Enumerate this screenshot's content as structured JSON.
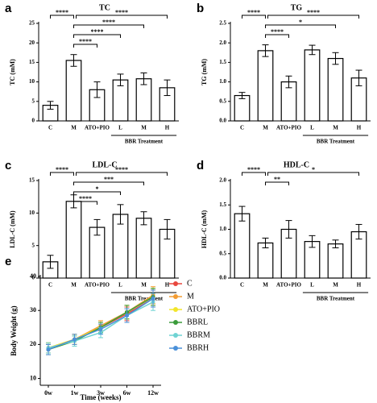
{
  "chart_data": [
    {
      "type": "bar",
      "panel_label": "a",
      "title": "TC",
      "y_label": "TC (mM)",
      "categories": [
        "C",
        "M",
        "ATO+PIO",
        "L",
        "M",
        "H"
      ],
      "group_label": "BBR Treatment",
      "values": [
        4,
        15.5,
        8,
        10.5,
        10.8,
        8.5
      ],
      "errors": [
        1,
        1.5,
        2,
        1.5,
        1.5,
        2
      ],
      "ylim": [
        0,
        25
      ],
      "yticks": [
        0,
        5,
        10,
        15,
        20,
        25
      ],
      "comparisons": [
        {
          "between": [
            0,
            1
          ],
          "label": "****"
        },
        {
          "between": [
            1,
            5
          ],
          "label": "****"
        },
        {
          "between": [
            1,
            4
          ],
          "label": "****"
        },
        {
          "between": [
            1,
            3
          ],
          "label": "****"
        },
        {
          "between": [
            1,
            2
          ],
          "label": "****"
        }
      ]
    },
    {
      "type": "bar",
      "panel_label": "b",
      "title": "TG",
      "y_label": "TG (mM)",
      "categories": [
        "C",
        "M",
        "ATO+PIO",
        "L",
        "M",
        "H"
      ],
      "group_label": "BBR Treatment",
      "values": [
        0.65,
        1.8,
        1.0,
        1.82,
        1.6,
        1.1
      ],
      "errors": [
        0.08,
        0.15,
        0.15,
        0.12,
        0.15,
        0.2
      ],
      "ylim": [
        0,
        2.5
      ],
      "yticks": [
        {
          "value": 0,
          "label": "0.0"
        },
        {
          "value": 0.5,
          "label": "0.5"
        },
        {
          "value": 1,
          "label": "1.0"
        },
        {
          "value": 1.5,
          "label": "1.5"
        },
        {
          "value": 2,
          "label": "2.0"
        },
        {
          "value": 2.5,
          "label": "2.5"
        }
      ],
      "comparisons": [
        {
          "between": [
            0,
            1
          ],
          "label": "****"
        },
        {
          "between": [
            1,
            5
          ],
          "label": "****"
        },
        {
          "between": [
            1,
            4
          ],
          "label": "*"
        },
        {
          "between": [
            1,
            2
          ],
          "label": "****"
        }
      ]
    },
    {
      "type": "bar",
      "panel_label": "c",
      "title": "LDL-C",
      "y_label": "LDL-C (mM)",
      "categories": [
        "C",
        "M",
        "ATO+PIO",
        "L",
        "M",
        "H"
      ],
      "group_label": "BBR Treatment",
      "values": [
        2.5,
        11.8,
        7.8,
        9.8,
        9.2,
        7.5
      ],
      "errors": [
        1,
        1,
        1.2,
        1.5,
        1,
        1.5
      ],
      "ylim": [
        0,
        15
      ],
      "yticks": [
        0,
        5,
        10,
        15
      ],
      "comparisons": [
        {
          "between": [
            0,
            1
          ],
          "label": "****"
        },
        {
          "between": [
            1,
            5
          ],
          "label": "****"
        },
        {
          "between": [
            1,
            4
          ],
          "label": "***"
        },
        {
          "between": [
            1,
            3
          ],
          "label": "*"
        },
        {
          "between": [
            1,
            2
          ],
          "label": "****"
        }
      ]
    },
    {
      "type": "bar",
      "panel_label": "d",
      "title": "HDL-C",
      "y_label": "HDL-C (mM)",
      "categories": [
        "C",
        "M",
        "ATO+PIO",
        "L",
        "M",
        "H"
      ],
      "group_label": "BBR Treatment",
      "values": [
        1.32,
        0.72,
        1.0,
        0.75,
        0.7,
        0.95
      ],
      "errors": [
        0.15,
        0.1,
        0.18,
        0.12,
        0.08,
        0.15
      ],
      "ylim": [
        0,
        2.0
      ],
      "yticks": [
        {
          "value": 0,
          "label": "0.0"
        },
        {
          "value": 0.5,
          "label": "0.5"
        },
        {
          "value": 1,
          "label": "1.0"
        },
        {
          "value": 1.5,
          "label": "1.5"
        },
        {
          "value": 2,
          "label": "2.0"
        }
      ],
      "comparisons": [
        {
          "between": [
            0,
            1
          ],
          "label": "****"
        },
        {
          "between": [
            1,
            5
          ],
          "label": "*"
        },
        {
          "between": [
            1,
            2
          ],
          "label": "**"
        }
      ]
    },
    {
      "type": "line",
      "panel_label": "e",
      "y_label": "Body Weight (g)",
      "x_label": "Time (weeks)",
      "categories": [
        "0w",
        "1w",
        "3w",
        "6w",
        "12w"
      ],
      "ylim": [
        8,
        40
      ],
      "yticks": [
        10,
        20,
        30,
        40
      ],
      "series": [
        {
          "name": "C",
          "color": "#e8473e",
          "values": [
            18.5,
            21.5,
            25,
            29,
            33.5
          ],
          "errors": [
            1.5,
            1.5,
            1.5,
            2,
            2.5
          ]
        },
        {
          "name": "M",
          "color": "#f39c32",
          "values": [
            19,
            21.5,
            25.5,
            29.5,
            34.5
          ],
          "errors": [
            1.5,
            1.5,
            1.5,
            2,
            2.5
          ]
        },
        {
          "name": "ATO+PIO",
          "color": "#f2e52a",
          "values": [
            19,
            21.5,
            25,
            29.5,
            34
          ],
          "errors": [
            1.5,
            1.5,
            1.5,
            2,
            2.5
          ]
        },
        {
          "name": "BBRL",
          "color": "#3a9b3a",
          "values": [
            18.5,
            21,
            25,
            29.5,
            34
          ],
          "errors": [
            1.5,
            1.5,
            1.5,
            2,
            2.5
          ]
        },
        {
          "name": "BBRM",
          "color": "#6fd3d3",
          "values": [
            19,
            21,
            23.5,
            28.5,
            32.5
          ],
          "errors": [
            1.5,
            1.5,
            1.5,
            2,
            2.5
          ]
        },
        {
          "name": "BBRH",
          "color": "#4a90d9",
          "values": [
            18.5,
            21.5,
            24.5,
            28.5,
            33.5
          ],
          "errors": [
            1.5,
            1.5,
            1.5,
            2,
            2.5
          ]
        }
      ]
    }
  ]
}
